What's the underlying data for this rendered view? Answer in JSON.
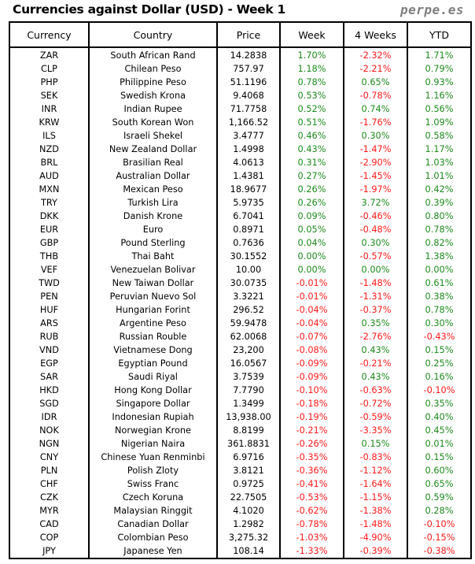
{
  "title": "Currencies against Dollar (USD) - Week 1",
  "brand": "perpe.es",
  "colors": {
    "positive": "#1c8a1c",
    "negative": "#ff1a1a"
  },
  "columns": [
    "Currency",
    "Country",
    "Price",
    "Week",
    "4 Weeks",
    "YTD"
  ],
  "rows": [
    [
      "ZAR",
      "South African Rand",
      "14.2838",
      "1.70%",
      "-2.32%",
      "1.71%"
    ],
    [
      "CLP",
      "Chilean Peso",
      "757.97",
      "1.18%",
      "-2.21%",
      "0.79%"
    ],
    [
      "PHP",
      "Philippine Peso",
      "51.1196",
      "0.78%",
      "0.65%",
      "0.93%"
    ],
    [
      "SEK",
      "Swedish Krona",
      "9.4068",
      "0.53%",
      "-0.78%",
      "1.16%"
    ],
    [
      "INR",
      "Indian Rupee",
      "71.7758",
      "0.52%",
      "0.74%",
      "0.56%"
    ],
    [
      "KRW",
      "South Korean Won",
      "1,166.52",
      "0.51%",
      "-1.76%",
      "1.09%"
    ],
    [
      "ILS",
      "Israeli Shekel",
      "3.4777",
      "0.46%",
      "0.30%",
      "0.58%"
    ],
    [
      "NZD",
      "New Zealand Dollar",
      "1.4998",
      "0.43%",
      "-1.47%",
      "1.17%"
    ],
    [
      "BRL",
      "Brasilian Real",
      "4.0613",
      "0.31%",
      "-2.90%",
      "1.03%"
    ],
    [
      "AUD",
      "Australian Dollar",
      "1.4381",
      "0.27%",
      "-1.45%",
      "1.01%"
    ],
    [
      "MXN",
      "Mexican Peso",
      "18.9677",
      "0.26%",
      "-1.97%",
      "0.42%"
    ],
    [
      "TRY",
      "Turkish Lira",
      "5.9735",
      "0.26%",
      "3.72%",
      "0.39%"
    ],
    [
      "DKK",
      "Danish Krone",
      "6.7041",
      "0.09%",
      "-0.46%",
      "0.80%"
    ],
    [
      "EUR",
      "Euro",
      "0.8971",
      "0.05%",
      "-0.48%",
      "0.78%"
    ],
    [
      "GBP",
      "Pound Sterling",
      "0.7636",
      "0.04%",
      "0.30%",
      "0.82%"
    ],
    [
      "THB",
      "Thai Baht",
      "30.1552",
      "0.00%",
      "-0.57%",
      "1.38%"
    ],
    [
      "VEF",
      "Venezuelan Bolivar",
      "10.00",
      "0.00%",
      "0.00%",
      "0.00%"
    ],
    [
      "TWD",
      "New Taiwan Dollar",
      "30.0735",
      "-0.01%",
      "-1.48%",
      "0.61%"
    ],
    [
      "PEN",
      "Peruvian Nuevo Sol",
      "3.3221",
      "-0.01%",
      "-1.31%",
      "0.38%"
    ],
    [
      "HUF",
      "Hungarian Forint",
      "296.52",
      "-0.04%",
      "-0.37%",
      "0.78%"
    ],
    [
      "ARS",
      "Argentine Peso",
      "59.9478",
      "-0.04%",
      "0.35%",
      "0.30%"
    ],
    [
      "RUB",
      "Russian Rouble",
      "62.0068",
      "-0.07%",
      "-2.76%",
      "-0.43%"
    ],
    [
      "VND",
      "Vietnamese Dong",
      "23,200",
      "-0.08%",
      "0.43%",
      "0.15%"
    ],
    [
      "EGP",
      "Egyptian Pound",
      "16.0567",
      "-0.09%",
      "-0.21%",
      "0.25%"
    ],
    [
      "SAR",
      "Saudi Riyal",
      "3.7539",
      "-0.09%",
      "0.43%",
      "0.16%"
    ],
    [
      "HKD",
      "Hong Kong Dollar",
      "7.7790",
      "-0.10%",
      "-0.63%",
      "-0.10%"
    ],
    [
      "SGD",
      "Singapore Dollar",
      "1.3499",
      "-0.18%",
      "-0.72%",
      "0.35%"
    ],
    [
      "IDR",
      "Indonesian Rupiah",
      "13,938.00",
      "-0.19%",
      "-0.59%",
      "0.40%"
    ],
    [
      "NOK",
      "Norwegian Krone",
      "8.8199",
      "-0.21%",
      "-3.35%",
      "0.45%"
    ],
    [
      "NGN",
      "Nigerian Naira",
      "361.8831",
      "-0.26%",
      "0.15%",
      "0.01%"
    ],
    [
      "CNY",
      "Chinese Yuan Renminbi",
      "6.9716",
      "-0.35%",
      "-0.83%",
      "0.15%"
    ],
    [
      "PLN",
      "Polish Zloty",
      "3.8121",
      "-0.36%",
      "-1.12%",
      "0.60%"
    ],
    [
      "CHF",
      "Swiss Franc",
      "0.9725",
      "-0.41%",
      "-1.64%",
      "0.65%"
    ],
    [
      "CZK",
      "Czech Koruna",
      "22.7505",
      "-0.53%",
      "-1.15%",
      "0.59%"
    ],
    [
      "MYR",
      "Malaysian Ringgit",
      "4.1020",
      "-0.62%",
      "-1.38%",
      "0.28%"
    ],
    [
      "CAD",
      "Canadian Dollar",
      "1.2982",
      "-0.78%",
      "-1.48%",
      "-0.10%"
    ],
    [
      "COP",
      "Colombian Peso",
      "3,275.32",
      "-1.03%",
      "-4.90%",
      "-0.15%"
    ],
    [
      "JPY",
      "Japanese Yen",
      "108.14",
      "-1.33%",
      "-0.39%",
      "-0.38%"
    ]
  ]
}
